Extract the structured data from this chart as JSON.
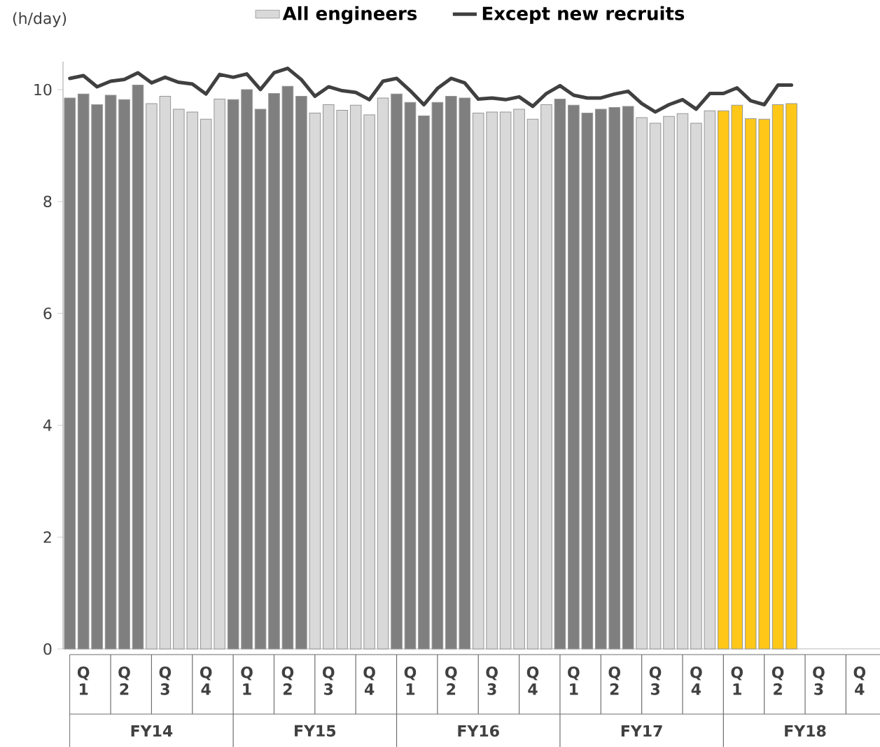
{
  "chart_data": {
    "type": "bar",
    "ylabel": "(h/day)",
    "legend": "top",
    "categories": [
      null,
      "Q 1",
      null,
      null,
      "Q 2",
      null,
      null,
      "Q 3",
      null,
      null,
      "Q 4",
      null,
      null,
      "Q 1",
      null,
      null,
      "Q 2",
      null,
      null,
      "Q 3",
      null,
      null,
      "Q 4",
      null,
      null,
      "Q 1",
      null,
      null,
      "Q 2",
      null,
      null,
      "Q 3",
      null,
      null,
      "Q 4",
      null,
      null,
      "Q 1",
      null,
      null,
      "Q 2",
      null,
      null,
      "Q 3",
      null,
      null,
      "Q 4",
      null,
      null,
      "Q 1",
      null,
      null,
      "Q 2",
      null,
      null,
      "Q 3",
      null,
      null,
      "Q 4",
      null
    ],
    "annotations": [
      "FY14",
      "FY15",
      "FY16",
      "FY17",
      "FY18"
    ],
    "ylim": [
      0,
      10.5
    ],
    "yticks": [
      0,
      2,
      4,
      6,
      8,
      10
    ],
    "series": [
      {
        "name": "All engineers",
        "color": "#d9d9d9",
        "colors": [
          "#7f7f7f",
          "#7f7f7f",
          "#7f7f7f",
          "#7f7f7f",
          "#7f7f7f",
          "#7f7f7f",
          "#d9d9d9",
          "#d9d9d9",
          "#d9d9d9",
          "#d9d9d9",
          "#d9d9d9",
          "#d9d9d9",
          "#7f7f7f",
          "#7f7f7f",
          "#7f7f7f",
          "#7f7f7f",
          "#7f7f7f",
          "#7f7f7f",
          "#d9d9d9",
          "#d9d9d9",
          "#d9d9d9",
          "#d9d9d9",
          "#d9d9d9",
          "#d9d9d9",
          "#7f7f7f",
          "#7f7f7f",
          "#7f7f7f",
          "#7f7f7f",
          "#7f7f7f",
          "#7f7f7f",
          "#d9d9d9",
          "#d9d9d9",
          "#d9d9d9",
          "#d9d9d9",
          "#d9d9d9",
          "#d9d9d9",
          "#7f7f7f",
          "#7f7f7f",
          "#7f7f7f",
          "#7f7f7f",
          "#7f7f7f",
          "#7f7f7f",
          "#d9d9d9",
          "#d9d9d9",
          "#d9d9d9",
          "#d9d9d9",
          "#d9d9d9",
          "#d9d9d9",
          "#ffc819",
          "#ffc819",
          "#ffc819",
          "#ffc819",
          "#ffc819",
          "#ffc819",
          null,
          null,
          null,
          null,
          null,
          null
        ],
        "values": [
          9.85,
          9.92,
          9.73,
          9.9,
          9.82,
          10.08,
          9.75,
          9.88,
          9.65,
          9.6,
          9.47,
          9.83,
          9.82,
          10.0,
          9.65,
          9.93,
          10.06,
          9.88,
          9.58,
          9.73,
          9.63,
          9.72,
          9.55,
          9.85,
          9.92,
          9.77,
          9.53,
          9.77,
          9.88,
          9.85,
          9.58,
          9.6,
          9.6,
          9.65,
          9.47,
          9.73,
          9.83,
          9.72,
          9.58,
          9.65,
          9.68,
          9.7,
          9.5,
          9.4,
          9.52,
          9.57,
          9.4,
          9.62,
          9.62,
          9.72,
          9.48,
          9.47,
          9.73,
          9.75,
          null,
          null,
          null,
          null,
          null,
          null
        ]
      },
      {
        "name": "Except new recruits",
        "type": "line",
        "color": "#404040",
        "values": [
          10.2,
          10.25,
          10.05,
          10.15,
          10.18,
          10.3,
          10.12,
          10.22,
          10.13,
          10.1,
          9.92,
          10.27,
          10.22,
          10.28,
          10.0,
          10.3,
          10.38,
          10.18,
          9.88,
          10.05,
          9.98,
          9.95,
          9.82,
          10.15,
          10.2,
          9.98,
          9.73,
          10.02,
          10.2,
          10.12,
          9.83,
          9.85,
          9.82,
          9.87,
          9.7,
          9.93,
          10.07,
          9.9,
          9.85,
          9.85,
          9.92,
          9.97,
          9.75,
          9.6,
          9.73,
          9.82,
          9.65,
          9.93,
          9.93,
          10.03,
          9.8,
          9.73,
          10.08,
          10.08,
          null,
          null,
          null,
          null,
          null,
          null
        ]
      }
    ]
  }
}
